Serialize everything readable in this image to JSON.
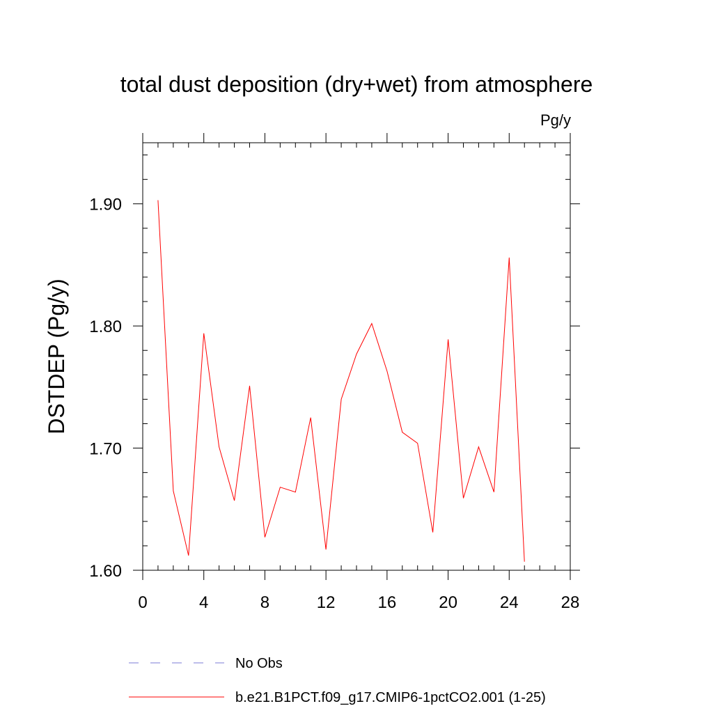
{
  "chart_data": {
    "type": "line",
    "title": "total dust deposition (dry+wet) from atmosphere",
    "units": "Pg/y",
    "xlabel": "",
    "ylabel": "DSTDEP  (Pg/y)",
    "xlim": [
      0,
      28
    ],
    "ylim": [
      1.6,
      1.95
    ],
    "x_ticks": [
      "0",
      "4",
      "8",
      "12",
      "16",
      "20",
      "24",
      "28"
    ],
    "x_tick_values": [
      0,
      4,
      8,
      12,
      16,
      20,
      24,
      28
    ],
    "y_ticks": [
      "1.60",
      "1.70",
      "1.80",
      "1.90"
    ],
    "y_tick_values": [
      1.6,
      1.7,
      1.8,
      1.9
    ],
    "grid": false,
    "legend_position": "bottom",
    "series": [
      {
        "name": "No Obs",
        "color": "#7b7bd6",
        "style": "dashed",
        "x": [],
        "y": []
      },
      {
        "name": "b.e21.B1PCT.f09_g17.CMIP6-1pctCO2.001 (1-25)",
        "color": "#ff0000",
        "style": "solid",
        "x": [
          1,
          2,
          3,
          4,
          5,
          6,
          7,
          8,
          9,
          10,
          11,
          12,
          13,
          14,
          15,
          16,
          17,
          18,
          19,
          20,
          21,
          22,
          23,
          24,
          25
        ],
        "y": [
          1.903,
          1.665,
          1.612,
          1.794,
          1.701,
          1.657,
          1.751,
          1.627,
          1.668,
          1.664,
          1.725,
          1.617,
          1.74,
          1.777,
          1.802,
          1.763,
          1.713,
          1.704,
          1.631,
          1.789,
          1.659,
          1.701,
          1.664,
          1.856,
          1.607
        ]
      }
    ]
  }
}
